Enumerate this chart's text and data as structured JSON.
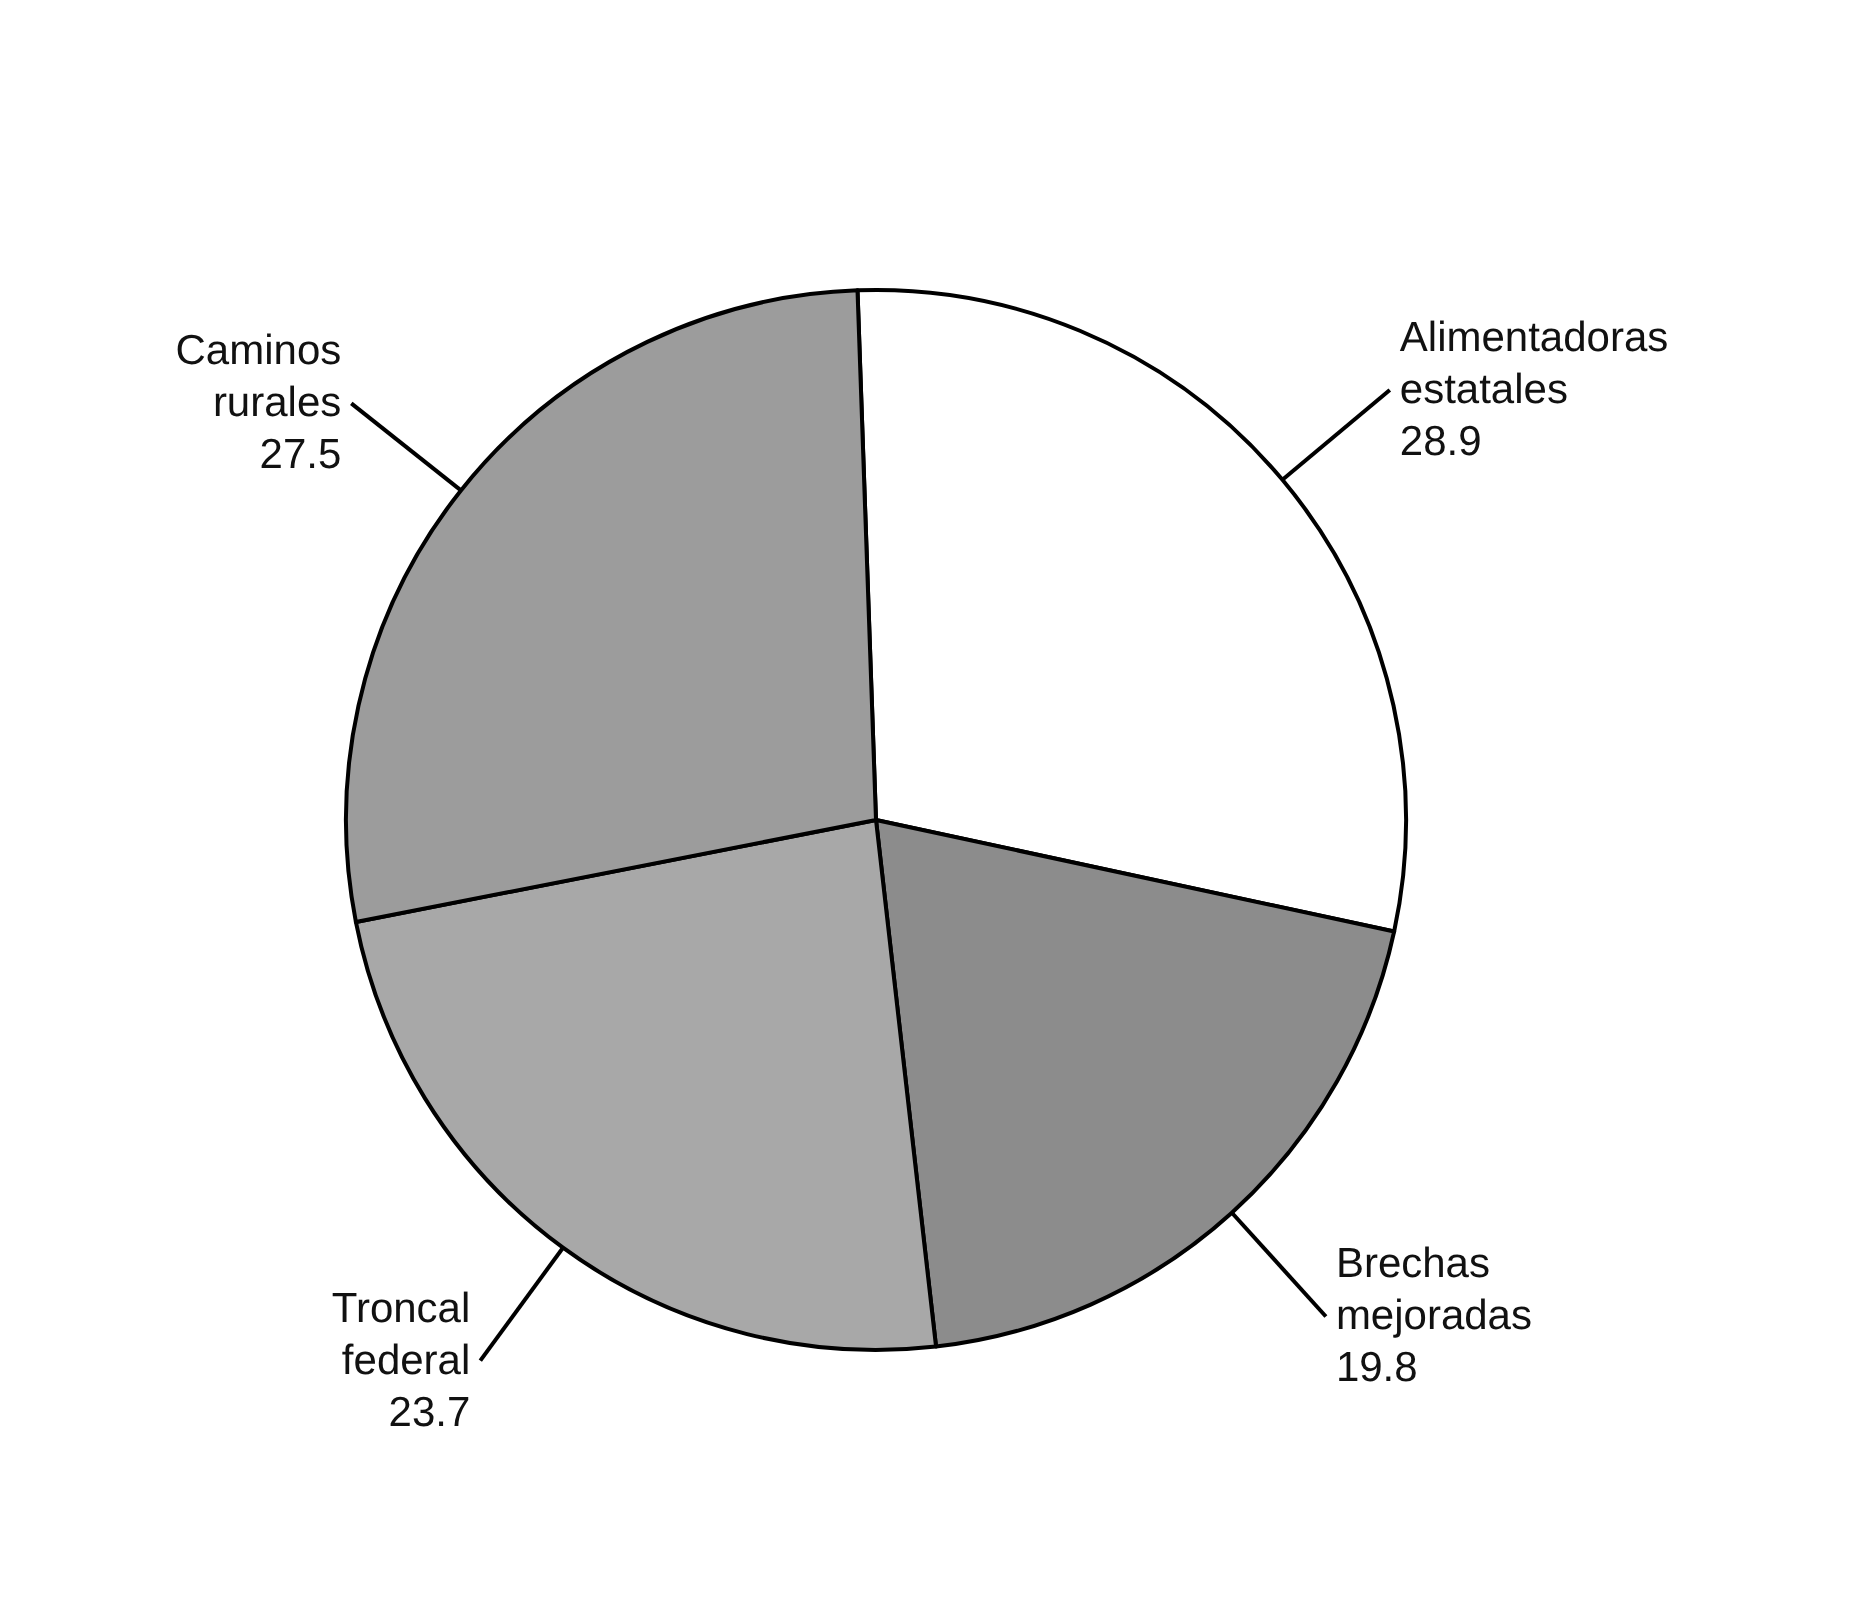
{
  "chart_data": {
    "type": "pie",
    "categories": [
      "Alimentadoras estatales",
      "Brechas mejoradas",
      "Troncal federal",
      "Caminos rurales"
    ],
    "values": [
      28.9,
      19.8,
      23.7,
      27.5
    ],
    "colors": [
      "#ffffff",
      "#8c8c8c",
      "#a8a8a8",
      "#9c9c9c"
    ],
    "data_labels": true,
    "legend": false
  }
}
